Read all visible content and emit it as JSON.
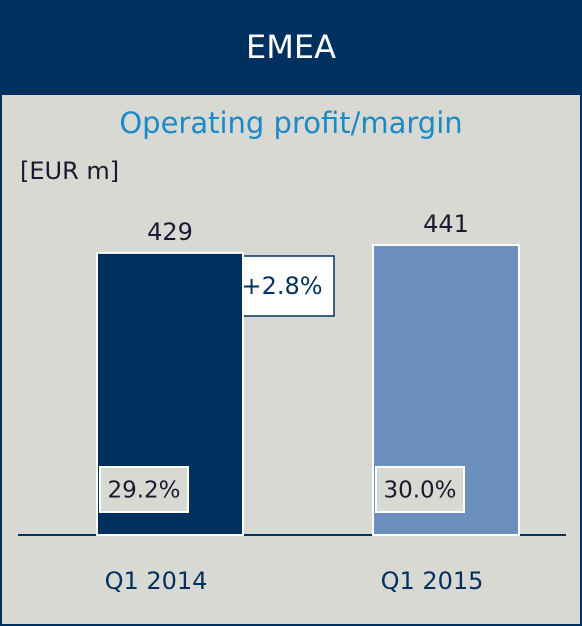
{
  "chart_data": {
    "type": "bar",
    "header": "EMEA",
    "title": "Operating profit/margin",
    "unit_label": "[EUR m]",
    "categories": [
      "Q1 2014",
      "Q1 2015"
    ],
    "values": [
      429,
      441
    ],
    "colors": [
      "#00305e",
      "#6d8fbe"
    ],
    "margins": [
      29.2,
      30
    ],
    "margin_labels": [
      "29.2%",
      "30.0%"
    ],
    "change": {
      "value": 2.8,
      "label": "+2.8%"
    }
  }
}
